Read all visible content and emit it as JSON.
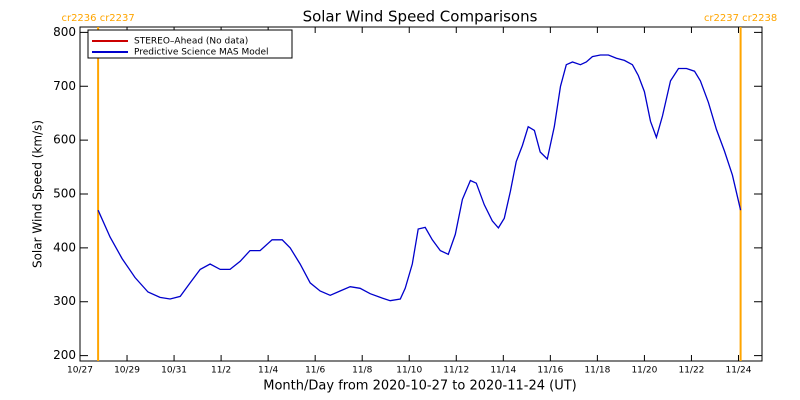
{
  "chart_data": {
    "type": "line",
    "title": "Solar Wind Speed Comparisons",
    "x_label": "Month/Day from 2020-10-27 to 2020-11-24 (UT)",
    "y_label": "Solar Wind Speed (km/s)",
    "xlim": [
      0,
      29
    ],
    "ylim": [
      190,
      810
    ],
    "xticks": [
      {
        "value": 0,
        "label": "10/27"
      },
      {
        "value": 2,
        "label": "10/29"
      },
      {
        "value": 4,
        "label": "10/31"
      },
      {
        "value": 6,
        "label": "11/2"
      },
      {
        "value": 8,
        "label": "11/4"
      },
      {
        "value": 10,
        "label": "11/6"
      },
      {
        "value": 12,
        "label": "11/8"
      },
      {
        "value": 14,
        "label": "11/10"
      },
      {
        "value": 16,
        "label": "11/12"
      },
      {
        "value": 18,
        "label": "11/14"
      },
      {
        "value": 20,
        "label": "11/16"
      },
      {
        "value": 22,
        "label": "11/18"
      },
      {
        "value": 24,
        "label": "11/20"
      },
      {
        "value": 26,
        "label": "11/22"
      },
      {
        "value": 28,
        "label": "11/24"
      }
    ],
    "yticks": [
      200,
      300,
      400,
      500,
      600,
      700,
      800
    ],
    "legend": "upper left",
    "annotations": [
      {
        "text": "cr2236 cr2237",
        "x": 0.77,
        "color": "#ffa500"
      },
      {
        "text": "cr2237 cr2238",
        "x": 28.09,
        "color": "#ffa500"
      }
    ],
    "series": [
      {
        "name": "STEREO–Ahead (No data)",
        "color": "#cc0000",
        "x": [],
        "values": []
      },
      {
        "name": "Predictive Science MAS Model",
        "color": "#0000cc",
        "x": [
          0.77,
          1.28,
          1.79,
          2.34,
          2.89,
          3.4,
          3.83,
          4.26,
          4.68,
          5.11,
          5.53,
          5.96,
          6.38,
          6.81,
          7.23,
          7.66,
          8.17,
          8.6,
          8.94,
          9.36,
          9.79,
          10.21,
          10.64,
          11.06,
          11.49,
          11.91,
          12.34,
          12.77,
          13.19,
          13.62,
          13.83,
          14.13,
          14.38,
          14.68,
          14.98,
          15.32,
          15.66,
          15.96,
          16.26,
          16.6,
          16.85,
          17.19,
          17.53,
          17.79,
          18.04,
          18.3,
          18.55,
          18.81,
          19.06,
          19.32,
          19.57,
          19.87,
          20.17,
          20.43,
          20.68,
          20.94,
          21.28,
          21.53,
          21.79,
          22.13,
          22.47,
          22.81,
          23.15,
          23.49,
          23.74,
          24.0,
          24.26,
          24.51,
          24.77,
          25.11,
          25.45,
          25.79,
          26.13,
          26.38,
          26.72,
          27.06,
          27.4,
          27.74,
          28.09
        ],
        "values": [
          470,
          420,
          380,
          345,
          318,
          308,
          305,
          310,
          335,
          360,
          370,
          360,
          360,
          375,
          395,
          395,
          415,
          415,
          400,
          370,
          335,
          320,
          312,
          320,
          328,
          325,
          315,
          308,
          302,
          305,
          325,
          370,
          435,
          438,
          415,
          395,
          388,
          425,
          490,
          525,
          520,
          480,
          450,
          437,
          455,
          505,
          560,
          590,
          625,
          618,
          578,
          565,
          625,
          700,
          740,
          745,
          740,
          745,
          755,
          758,
          758,
          752,
          748,
          740,
          720,
          690,
          635,
          605,
          645,
          710,
          733,
          733,
          728,
          710,
          670,
          620,
          580,
          535,
          470
        ]
      }
    ]
  }
}
